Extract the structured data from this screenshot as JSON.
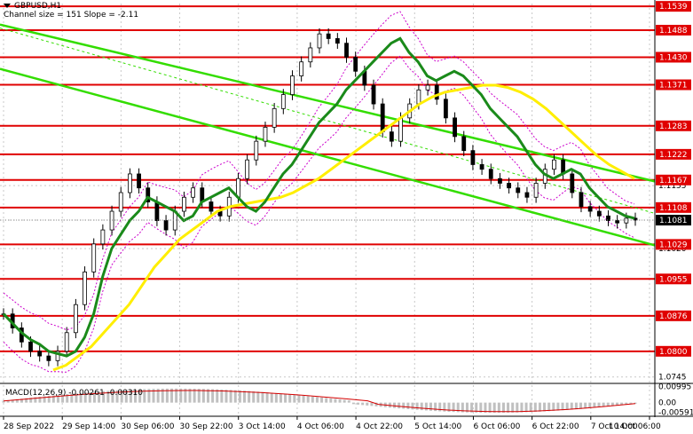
{
  "header": {
    "symbol": "GBPUSD,H1",
    "channel_info": "Channel size = 151 Slope = -2.11"
  },
  "macd": {
    "label": "MACD(12,26,9) -0.00261 -0.00310",
    "ticks": [
      "0.00995",
      "0.00",
      "-0.00591"
    ],
    "ylim": [
      -0.0068,
      0.0108
    ],
    "histogram_color": "#c0c0c0",
    "signal_color": "#d40000"
  },
  "colors": {
    "candle": "#000000",
    "level_line": "#e00000",
    "level_label_bg": "#e00000",
    "level_label_text": "#ffffff",
    "channel": "#33dd00",
    "ma_fast": "#1a8a1a",
    "ma_slow": "#ffee00",
    "bollinger": "#cc00cc",
    "grid": "#c8c8c8",
    "current_price_bg": "#000000"
  },
  "chart_data": {
    "type": "line",
    "title": "",
    "xlabel": "",
    "ylabel": "",
    "ylim": [
      1.0735,
      1.1545
    ],
    "grid": true,
    "x_ticks": [
      "28 Sep 2022",
      "29 Sep 14:00",
      "30 Sep 06:00",
      "30 Sep 22:00",
      "3 Oct 14:00",
      "4 Oct 06:00",
      "4 Oct 22:00",
      "5 Oct 14:00",
      "6 Oct 06:00",
      "6 Oct 22:00",
      "7 Oct 14:00",
      "10 Oct 06:00"
    ],
    "y_ticks": [
      "1.1539",
      "1.1488",
      "1.1430",
      "1.1371",
      "1.1283",
      "1.1222",
      "1.1167",
      "1.1155",
      "1.1108",
      "1.1081",
      "1.1029",
      "1.1020",
      "1.0955",
      "1.0876",
      "1.0800",
      "1.0745"
    ],
    "levels": [
      1.1539,
      1.1488,
      1.143,
      1.1371,
      1.1283,
      1.1222,
      1.1167,
      1.1108,
      1.1029,
      1.0955,
      1.0876,
      1.08
    ],
    "level_labels": [
      "1.1539",
      "1.1488",
      "1.1430",
      "1.1371",
      "1.1283",
      "1.1222",
      "1.1167",
      "1.1108",
      "1.1029",
      "1.0955",
      "1.0876",
      "1.0800"
    ],
    "current_price": "1.1081",
    "current_price_value": 1.1081,
    "channel_lines": [
      {
        "from": [
          0,
          1.15
        ],
        "to": [
          1,
          1.1164
        ]
      },
      {
        "from": [
          0,
          1.1405
        ],
        "to": [
          1,
          1.1027
        ]
      }
    ],
    "series": [
      {
        "values": [
          1.088,
          1.086,
          1.084,
          1.0825,
          1.0815,
          1.08,
          1.0795,
          1.079,
          1.08,
          1.083,
          1.088,
          1.096,
          1.102,
          1.105,
          1.108,
          1.11,
          1.113,
          1.112,
          1.111,
          1.11,
          1.108,
          1.109,
          1.112,
          1.113,
          1.114,
          1.115,
          1.113,
          1.111,
          1.11,
          1.112,
          1.115,
          1.118,
          1.12,
          1.123,
          1.126,
          1.129,
          1.131,
          1.133,
          1.136,
          1.138,
          1.14,
          1.142,
          1.144,
          1.146,
          1.147,
          1.144,
          1.142,
          1.139,
          1.138,
          1.139,
          1.14,
          1.139,
          1.137,
          1.135,
          1.132,
          1.13,
          1.128,
          1.126,
          1.123,
          1.12,
          1.118,
          1.117,
          1.118,
          1.119,
          1.118,
          1.115,
          1.113,
          1.111,
          1.11,
          1.109,
          1.1085
        ]
      },
      {
        "values": [
          1.076,
          1.077,
          1.079,
          1.081,
          1.084,
          1.087,
          1.09,
          1.094,
          1.098,
          1.101,
          1.104,
          1.106,
          1.108,
          1.11,
          1.111,
          1.1115,
          1.112,
          1.1125,
          1.113,
          1.114,
          1.1155,
          1.117,
          1.119,
          1.121,
          1.123,
          1.125,
          1.127,
          1.129,
          1.131,
          1.133,
          1.1345,
          1.1355,
          1.136,
          1.1365,
          1.137,
          1.137,
          1.1365,
          1.1355,
          1.134,
          1.132,
          1.1295,
          1.127,
          1.1245,
          1.122,
          1.12,
          1.1185,
          1.117
        ]
      },
      {
        "values": [
          1.088,
          1.085,
          1.082,
          1.08,
          1.079,
          1.078,
          1.08,
          1.084,
          1.09,
          1.097,
          1.103,
          1.106,
          1.11,
          1.114,
          1.118,
          1.115,
          1.112,
          1.108,
          1.106,
          1.11,
          1.113,
          1.115,
          1.112,
          1.11,
          1.109,
          1.113,
          1.117,
          1.121,
          1.125,
          1.128,
          1.132,
          1.135,
          1.139,
          1.142,
          1.145,
          1.148,
          1.147,
          1.146,
          1.143,
          1.14,
          1.137,
          1.133,
          1.127,
          1.125,
          1.13,
          1.133,
          1.136,
          1.137,
          1.134,
          1.13,
          1.126,
          1.123,
          1.12,
          1.119,
          1.117,
          1.116,
          1.115,
          1.114,
          1.113,
          1.116,
          1.119,
          1.121,
          1.118,
          1.114,
          1.111,
          1.11,
          1.109,
          1.108,
          1.1075,
          1.1085,
          1.1081
        ]
      }
    ]
  }
}
